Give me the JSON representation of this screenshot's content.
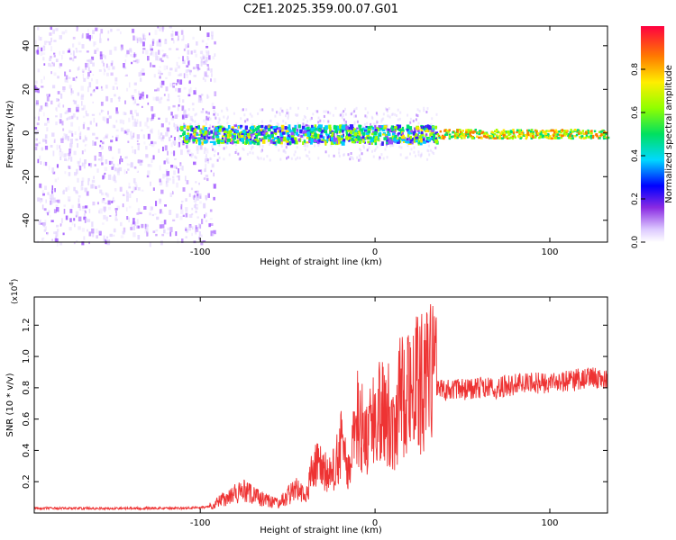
{
  "figure_title": "C2E1.2025.359.00.07.G01",
  "colors": {
    "snr_line": "#ee3333",
    "axis": "#000000",
    "spectrogram_noise": "#7a2ff0",
    "background": "#ffffff"
  },
  "colorbar": {
    "label": "Normalized spectral amplitude",
    "range": [
      0.0,
      1.0
    ],
    "ticks": [
      "0.0",
      "0.2",
      "0.4",
      "0.6",
      "0.8"
    ],
    "tick_values": [
      0.0,
      0.2,
      0.4,
      0.6,
      0.8
    ]
  },
  "chart_data": [
    {
      "type": "heatmap",
      "title": "",
      "xlabel": "Height of straight line (km)",
      "ylabel": "Frequency (Hz)",
      "xlim": [
        -195,
        133
      ],
      "ylim": [
        -50,
        49
      ],
      "x_ticks": [
        -100,
        0,
        100
      ],
      "x_tick_labels": [
        "-100",
        "0",
        "100"
      ],
      "y_ticks": [
        40,
        20,
        0,
        -20,
        -40
      ],
      "y_tick_labels": [
        "40",
        "20",
        "0",
        "-20",
        "-40"
      ],
      "regions": [
        {
          "name": "broadband noise",
          "x_range": [
            -195,
            -92
          ],
          "y_range": [
            -50,
            49
          ],
          "amplitude": 0.15
        },
        {
          "name": "signal band",
          "x_range": [
            -112,
            35
          ],
          "center_hz": 0,
          "half_width_hz": 4,
          "amplitude": 0.5
        },
        {
          "name": "steady tone",
          "x_range": [
            35,
            133
          ],
          "center_hz": 0,
          "half_width_hz": 2,
          "amplitude": 0.95
        }
      ]
    },
    {
      "type": "line",
      "title": "",
      "xlabel": "Height of straight line (km)",
      "ylabel": "SNR (10 * v/v)",
      "y_multiplier": "(x10",
      "y_multiplier_exp": "4",
      "y_multiplier_close": ")",
      "xlim": [
        -195,
        133
      ],
      "ylim": [
        0,
        1.38
      ],
      "x_ticks": [
        -100,
        0,
        100
      ],
      "x_tick_labels": [
        "-100",
        "0",
        "100"
      ],
      "y_ticks": [
        0.2,
        0.4,
        0.6,
        0.8,
        1.0,
        1.2
      ],
      "y_tick_labels": [
        "0.2",
        "0.4",
        "0.6",
        "0.8",
        "1.0",
        "1.2"
      ],
      "series": [
        {
          "name": "SNR",
          "x": [
            -195,
            -150,
            -110,
            -95,
            -85,
            -75,
            -65,
            -55,
            -45,
            -40,
            -35,
            -30,
            -25,
            -20,
            -15,
            -10,
            -5,
            0,
            5,
            10,
            15,
            20,
            25,
            30,
            35,
            40,
            50,
            60,
            70,
            80,
            90,
            100,
            110,
            120,
            125,
            133
          ],
          "y": [
            0.03,
            0.03,
            0.03,
            0.04,
            0.1,
            0.14,
            0.09,
            0.06,
            0.16,
            0.1,
            0.3,
            0.28,
            0.22,
            0.45,
            0.25,
            0.6,
            0.5,
            0.58,
            0.74,
            0.55,
            0.76,
            0.86,
            0.8,
            0.9,
            0.82,
            0.79,
            0.79,
            0.8,
            0.8,
            0.82,
            0.83,
            0.83,
            0.84,
            0.86,
            0.87,
            0.84
          ]
        }
      ]
    }
  ]
}
